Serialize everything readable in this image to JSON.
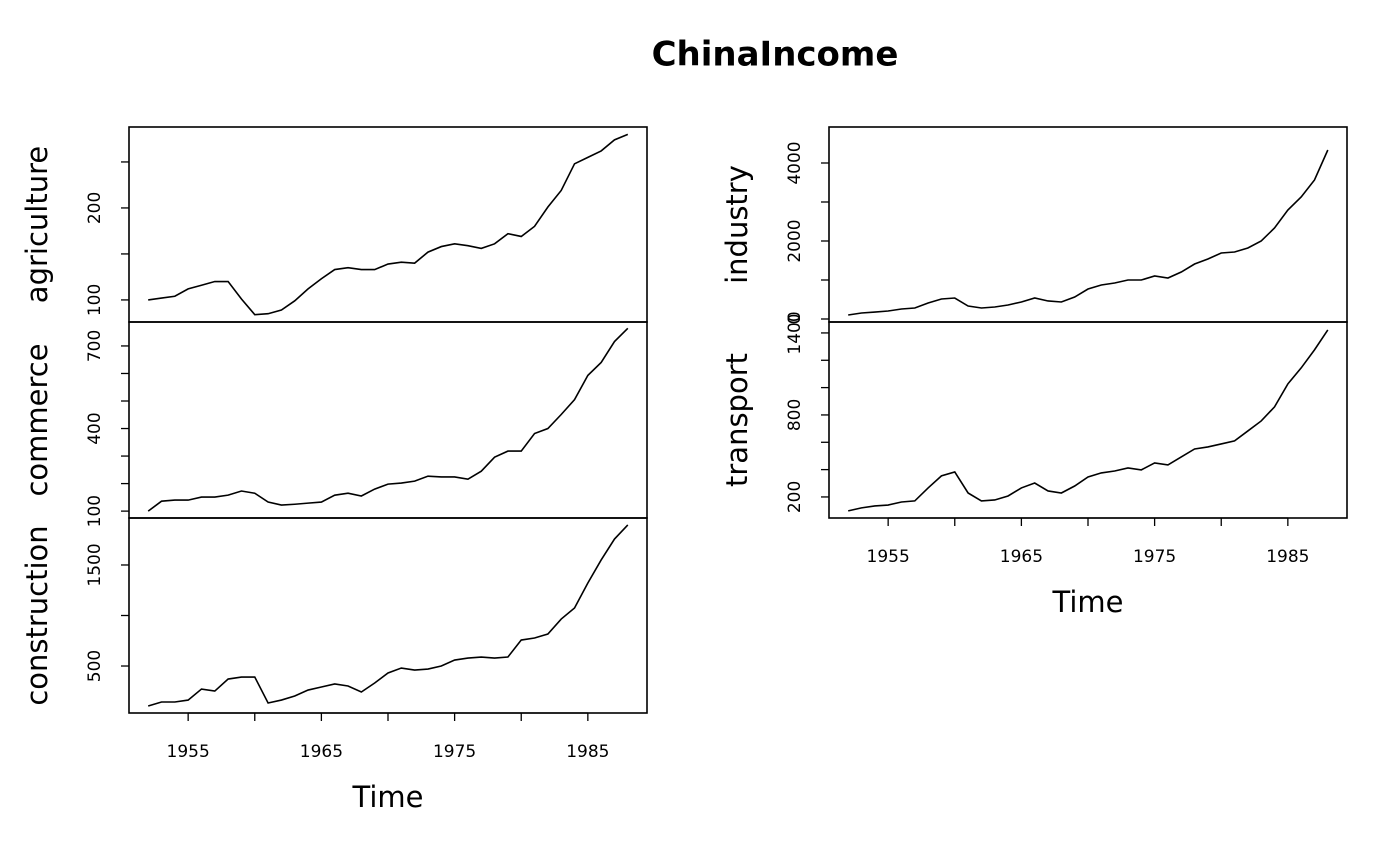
{
  "title": "ChinaIncome",
  "chart_data": [
    {
      "type": "line",
      "ylabel": "agriculture",
      "x": [
        1952,
        1953,
        1954,
        1955,
        1956,
        1957,
        1958,
        1959,
        1960,
        1961,
        1962,
        1963,
        1964,
        1965,
        1966,
        1967,
        1968,
        1969,
        1970,
        1971,
        1972,
        1973,
        1974,
        1975,
        1976,
        1977,
        1978,
        1979,
        1980,
        1981,
        1982,
        1983,
        1984,
        1985,
        1986,
        1987,
        1988
      ],
      "series": [
        {
          "name": "agriculture",
          "color": "#000000",
          "values": [
            100,
            102,
            104,
            112,
            116,
            120,
            120,
            101,
            84,
            85,
            89,
            99,
            112,
            123,
            133,
            135,
            133,
            133,
            139,
            141,
            140,
            152,
            158,
            161,
            159,
            156,
            161,
            172,
            169,
            180,
            201,
            219,
            248,
            255,
            262,
            274,
            280
          ]
        }
      ],
      "xlim": [
        1950.56,
        1989.44
      ],
      "ylim": [
        76,
        288
      ],
      "yticks": [
        100,
        200
      ],
      "minor_yticks": [
        150,
        250
      ]
    },
    {
      "type": "line",
      "ylabel": "commerce",
      "x": [
        1952,
        1953,
        1954,
        1955,
        1956,
        1957,
        1958,
        1959,
        1960,
        1961,
        1962,
        1963,
        1964,
        1965,
        1966,
        1967,
        1968,
        1969,
        1970,
        1971,
        1972,
        1973,
        1974,
        1975,
        1976,
        1977,
        1978,
        1979,
        1980,
        1981,
        1982,
        1983,
        1984,
        1985,
        1986,
        1987,
        1988
      ],
      "series": [
        {
          "name": "commerce",
          "color": "#000000",
          "values": [
            100,
            136,
            140,
            140,
            151,
            151,
            158,
            173,
            165,
            133,
            122,
            125,
            129,
            133,
            158,
            165,
            155,
            180,
            198,
            202,
            209,
            227,
            224,
            224,
            216,
            245,
            296,
            318,
            318,
            382,
            400,
            451,
            505,
            593,
            640,
            716,
            764
          ]
        }
      ],
      "xlim": [
        1950.56,
        1989.44
      ],
      "ylim": [
        75,
        787
      ],
      "yticks": [
        100,
        400,
        700
      ],
      "minor_yticks": [
        200,
        300,
        500,
        600
      ]
    },
    {
      "type": "line",
      "ylabel": "construction",
      "xlabel": "Time",
      "x": [
        1952,
        1953,
        1954,
        1955,
        1956,
        1957,
        1958,
        1959,
        1960,
        1961,
        1962,
        1963,
        1964,
        1965,
        1966,
        1967,
        1968,
        1969,
        1970,
        1971,
        1972,
        1973,
        1974,
        1975,
        1976,
        1977,
        1978,
        1979,
        1980,
        1981,
        1982,
        1983,
        1984,
        1985,
        1986,
        1987,
        1988
      ],
      "series": [
        {
          "name": "construction",
          "color": "#000000",
          "values": [
            104,
            144,
            144,
            163,
            272,
            252,
            371,
            391,
            391,
            134,
            163,
            203,
            262,
            292,
            322,
            302,
            243,
            332,
            431,
            480,
            460,
            470,
            500,
            559,
            579,
            589,
            579,
            589,
            757,
            777,
            817,
            965,
            1074,
            1322,
            1550,
            1757,
            1896
          ]
        }
      ],
      "xlim": [
        1950.56,
        1989.44
      ],
      "ylim": [
        35,
        1965
      ],
      "yticks": [
        500,
        1500
      ],
      "minor_yticks": [
        1000
      ],
      "xticks": [
        1955,
        1965,
        1975,
        1985
      ],
      "minor_xticks": [
        1960,
        1970,
        1980
      ]
    },
    {
      "type": "line",
      "ylabel": "industry",
      "x": [
        1952,
        1953,
        1954,
        1955,
        1956,
        1957,
        1958,
        1959,
        1960,
        1961,
        1962,
        1963,
        1964,
        1965,
        1966,
        1967,
        1968,
        1969,
        1970,
        1971,
        1972,
        1973,
        1974,
        1975,
        1976,
        1977,
        1978,
        1979,
        1980,
        1981,
        1982,
        1983,
        1984,
        1985,
        1986,
        1987,
        1988
      ],
      "series": [
        {
          "name": "industry",
          "color": "#000000",
          "values": [
            103,
            154,
            179,
            205,
            256,
            282,
            410,
            513,
            538,
            333,
            282,
            308,
            359,
            436,
            538,
            462,
            436,
            564,
            769,
            872,
            923,
            1000,
            1000,
            1103,
            1051,
            1205,
            1410,
            1538,
            1692,
            1718,
            1821,
            2000,
            2333,
            2795,
            3128,
            3564,
            4333
          ]
        }
      ],
      "xlim": [
        1950.56,
        1989.44
      ],
      "ylim": [
        -77,
        4923
      ],
      "yticks": [
        0,
        2000,
        4000
      ],
      "minor_yticks": [
        1000,
        3000
      ]
    },
    {
      "type": "line",
      "ylabel": "transport",
      "xlabel": "Time",
      "x": [
        1952,
        1953,
        1954,
        1955,
        1956,
        1957,
        1958,
        1959,
        1960,
        1961,
        1962,
        1963,
        1964,
        1965,
        1966,
        1967,
        1968,
        1969,
        1970,
        1971,
        1972,
        1973,
        1974,
        1975,
        1976,
        1977,
        1978,
        1979,
        1980,
        1981,
        1982,
        1983,
        1984,
        1985,
        1986,
        1987,
        1988
      ],
      "series": [
        {
          "name": "transport",
          "color": "#000000",
          "values": [
            98,
            120,
            134,
            141,
            163,
            171,
            266,
            354,
            383,
            229,
            171,
            178,
            207,
            266,
            302,
            244,
            229,
            280,
            346,
            376,
            390,
            412,
            398,
            449,
            434,
            493,
            551,
            566,
            588,
            610,
            683,
            756,
            859,
            1027,
            1144,
            1276,
            1422
          ]
        }
      ],
      "xlim": [
        1950.56,
        1989.44
      ],
      "ylim": [
        46,
        1480
      ],
      "yticks": [
        200,
        800,
        1400
      ],
      "minor_yticks": [
        400,
        600,
        1000,
        1200
      ],
      "xticks": [
        1955,
        1965,
        1975,
        1985
      ],
      "minor_xticks": [
        1960,
        1970,
        1980
      ]
    }
  ]
}
